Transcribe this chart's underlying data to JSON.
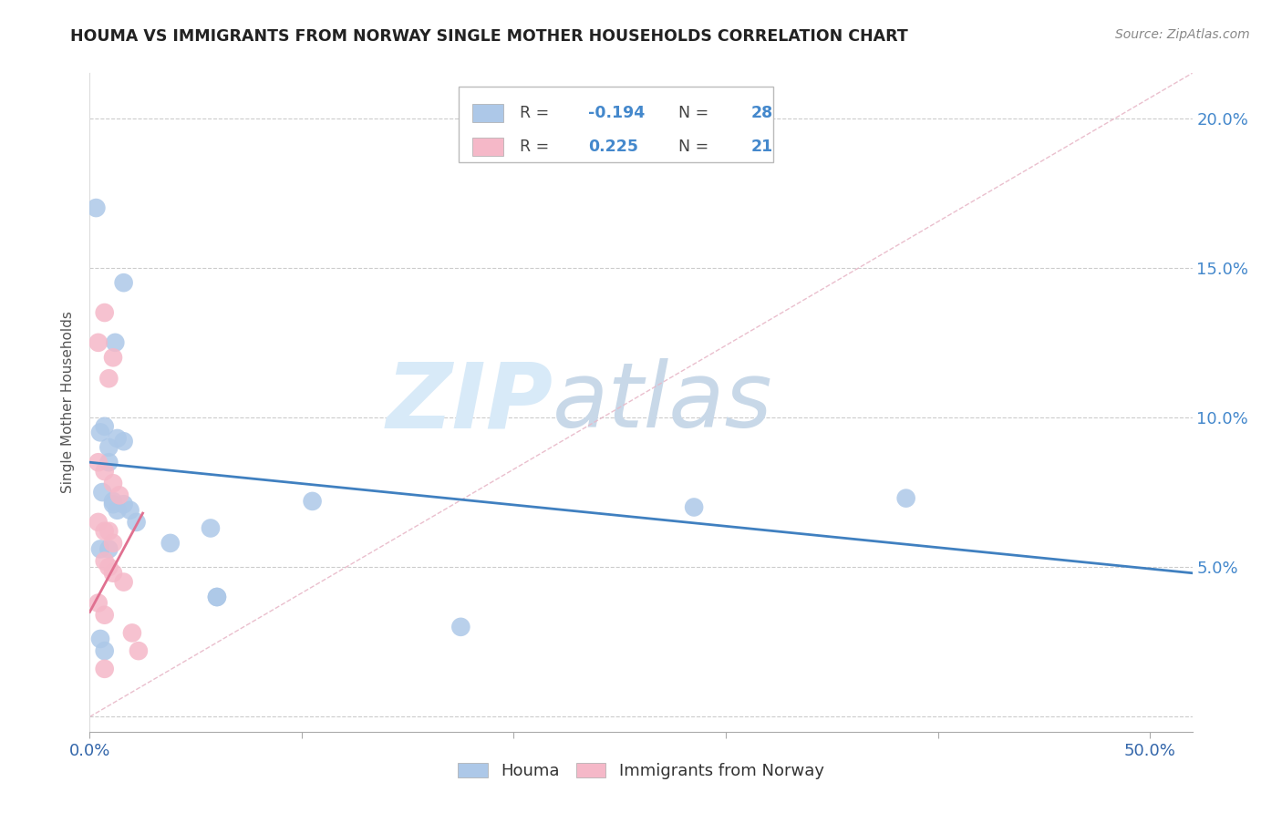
{
  "title": "HOUMA VS IMMIGRANTS FROM NORWAY SINGLE MOTHER HOUSEHOLDS CORRELATION CHART",
  "source": "Source: ZipAtlas.com",
  "ylabel": "Single Mother Households",
  "yticks": [
    0.0,
    0.05,
    0.1,
    0.15,
    0.2
  ],
  "ytick_labels": [
    "",
    "5.0%",
    "10.0%",
    "15.0%",
    "20.0%"
  ],
  "xticks": [
    0.0,
    0.1,
    0.2,
    0.3,
    0.4,
    0.5
  ],
  "xlim": [
    0.0,
    0.52
  ],
  "ylim": [
    -0.005,
    0.215
  ],
  "legend_blue_label": "Houma",
  "legend_pink_label": "Immigrants from Norway",
  "r_blue": "-0.194",
  "n_blue": "28",
  "r_pink": "0.225",
  "n_pink": "21",
  "blue_color": "#adc8e8",
  "pink_color": "#f5b8c8",
  "line_blue_color": "#4080c0",
  "line_pink_color": "#e07090",
  "dashed_line_color": "#e8b8c8",
  "watermark_zip_color": "#d8eaf8",
  "watermark_atlas_color": "#c8d8e8",
  "houma_x": [
    0.003,
    0.016,
    0.012,
    0.005,
    0.007,
    0.009,
    0.013,
    0.016,
    0.009,
    0.006,
    0.011,
    0.013,
    0.011,
    0.016,
    0.019,
    0.022,
    0.005,
    0.009,
    0.038,
    0.057,
    0.06,
    0.285,
    0.385,
    0.005,
    0.007,
    0.175,
    0.105,
    0.06
  ],
  "houma_y": [
    0.17,
    0.145,
    0.125,
    0.095,
    0.097,
    0.09,
    0.093,
    0.092,
    0.085,
    0.075,
    0.071,
    0.069,
    0.072,
    0.071,
    0.069,
    0.065,
    0.056,
    0.056,
    0.058,
    0.063,
    0.04,
    0.07,
    0.073,
    0.026,
    0.022,
    0.03,
    0.072,
    0.04
  ],
  "norway_x": [
    0.007,
    0.004,
    0.011,
    0.009,
    0.004,
    0.007,
    0.011,
    0.014,
    0.004,
    0.007,
    0.009,
    0.011,
    0.007,
    0.009,
    0.011,
    0.016,
    0.004,
    0.007,
    0.02,
    0.023,
    0.007
  ],
  "norway_y": [
    0.135,
    0.125,
    0.12,
    0.113,
    0.085,
    0.082,
    0.078,
    0.074,
    0.065,
    0.062,
    0.062,
    0.058,
    0.052,
    0.05,
    0.048,
    0.045,
    0.038,
    0.034,
    0.028,
    0.022,
    0.016
  ],
  "blue_line_x": [
    0.0,
    0.52
  ],
  "blue_line_y": [
    0.085,
    0.048
  ],
  "pink_line_x": [
    0.0,
    0.025
  ],
  "pink_line_y": [
    0.035,
    0.068
  ],
  "dashed_line_x": [
    0.0,
    0.52
  ],
  "dashed_line_y": [
    0.0,
    0.215
  ]
}
